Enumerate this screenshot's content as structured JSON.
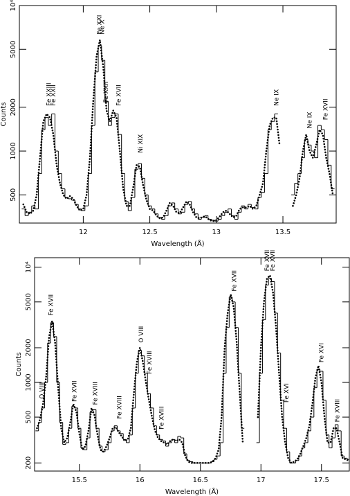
{
  "chart_data": [
    {
      "type": "line",
      "xlabel": "Wavelength (Å)",
      "ylabel": "Counts",
      "ylog": true,
      "xlim": [
        11.52,
        13.9
      ],
      "ylim": [
        320,
        10000
      ],
      "xticks": [
        12,
        12.5,
        13,
        13.5
      ],
      "yticks": [
        500,
        1000,
        2000,
        5000,
        {
          "value": 10000,
          "label": "10⁴"
        }
      ],
      "x": [
        11.55,
        11.575,
        11.6,
        11.625,
        11.65,
        11.675,
        11.7,
        11.725,
        11.75,
        11.775,
        11.8,
        11.825,
        11.85,
        11.875,
        11.9,
        11.925,
        11.95,
        11.975,
        12.0,
        12.025,
        12.05,
        12.075,
        12.1,
        12.125,
        12.15,
        12.175,
        12.2,
        12.225,
        12.25,
        12.275,
        12.3,
        12.325,
        12.35,
        12.375,
        12.4,
        12.425,
        12.45,
        12.475,
        12.5,
        12.525,
        12.55,
        12.575,
        12.6,
        12.625,
        12.65,
        12.675,
        12.7,
        12.725,
        12.75,
        12.775,
        12.8,
        12.825,
        12.85,
        12.875,
        12.9,
        12.925,
        12.95,
        12.975,
        13.0,
        13.025,
        13.05,
        13.075,
        13.1,
        13.125,
        13.15,
        13.175,
        13.2,
        13.225,
        13.25,
        13.275,
        13.3,
        13.325,
        13.35,
        13.375,
        13.4,
        13.425,
        13.45,
        13.475,
        13.5,
        13.525,
        13.55,
        13.575,
        13.6,
        13.625,
        13.65,
        13.675,
        13.7,
        13.725,
        13.75,
        13.775,
        13.8,
        13.825,
        13.85,
        13.875
      ],
      "series": [
        {
          "style": "steps",
          "color": "#000000",
          "values": [
            400,
            360,
            380,
            420,
            400,
            700,
            1400,
            1700,
            1500,
            1800,
            1000,
            700,
            550,
            480,
            470,
            460,
            430,
            400,
            390,
            420,
            700,
            1500,
            3500,
            5300,
            4200,
            2200,
            1500,
            1700,
            1800,
            1300,
            700,
            450,
            390,
            480,
            750,
            820,
            650,
            500,
            420,
            400,
            370,
            350,
            340,
            360,
            420,
            440,
            400,
            370,
            380,
            430,
            450,
            400,
            370,
            340,
            350,
            360,
            340,
            335,
            330,
            340,
            360,
            380,
            400,
            360,
            340,
            380,
            420,
            400,
            430,
            410,
            400,
            480,
            520,
            700,
            1400,
            1600,
            1800,
            null,
            null,
            null,
            null,
            500,
            600,
            700,
            900,
            1200,
            1100,
            1000,
            900,
            1500,
            1400,
            1200,
            800,
            550
          ]
        },
        {
          "style": "dotted",
          "color": "#000000",
          "values": [
            430,
            380,
            370,
            390,
            500,
            900,
            1600,
            1800,
            1700,
            1300,
            800,
            600,
            500,
            470,
            490,
            470,
            420,
            390,
            400,
            500,
            900,
            2200,
            4500,
            5800,
            3800,
            1900,
            1600,
            1900,
            1700,
            1000,
            550,
            420,
            420,
            560,
            800,
            780,
            580,
            460,
            400,
            390,
            360,
            345,
            350,
            390,
            440,
            420,
            380,
            375,
            410,
            450,
            430,
            380,
            350,
            345,
            355,
            350,
            335,
            330,
            335,
            355,
            380,
            390,
            370,
            350,
            360,
            400,
            410,
            410,
            420,
            400,
            420,
            500,
            600,
            1000,
            1500,
            1700,
            1700,
            1100,
            null,
            null,
            null,
            420,
            500,
            650,
            1000,
            1300,
            1000,
            900,
            1100,
            1400,
            1300,
            900,
            700,
            500
          ]
        }
      ],
      "annotations": [
        {
          "text": "Fe XXIII",
          "x": 11.74,
          "y": 2000
        },
        {
          "text": "Fe XXII",
          "x": 11.775,
          "y": 2000
        },
        {
          "text": "Fe XXI",
          "x": 12.12,
          "y": 6200
        },
        {
          "text": "Ne X",
          "x": 12.14,
          "y": 6200
        },
        {
          "text": "Fe XXII",
          "x": 12.17,
          "y": 2100
        },
        {
          "text": "Fe XVII",
          "x": 12.265,
          "y": 2000
        },
        {
          "text": "Ni XIX",
          "x": 12.43,
          "y": 950
        },
        {
          "text": "Ne IX",
          "x": 13.45,
          "y": 2000
        },
        {
          "text": "Ne IX",
          "x": 13.7,
          "y": 1400
        },
        {
          "text": "Fe XVII",
          "x": 13.82,
          "y": 1600
        }
      ]
    },
    {
      "type": "line",
      "xlabel": "Wavelength (Å)",
      "ylabel": "Counts",
      "ylog": true,
      "xlim": [
        15.13,
        17.73
      ],
      "ylim": [
        170,
        12100
      ],
      "xticks": [
        15.5,
        16,
        16.5,
        17,
        17.5
      ],
      "yticks": [
        200,
        500,
        1000,
        2000,
        5000,
        {
          "value": 10000,
          "label": "10⁴"
        }
      ],
      "x": [
        15.15,
        15.175,
        15.2,
        15.225,
        15.25,
        15.275,
        15.3,
        15.325,
        15.35,
        15.375,
        15.4,
        15.425,
        15.45,
        15.475,
        15.5,
        15.525,
        15.55,
        15.575,
        15.6,
        15.625,
        15.65,
        15.675,
        15.7,
        15.725,
        15.75,
        15.775,
        15.8,
        15.825,
        15.85,
        15.875,
        15.9,
        15.925,
        15.95,
        15.975,
        16.0,
        16.025,
        16.05,
        16.075,
        16.1,
        16.125,
        16.15,
        16.175,
        16.2,
        16.225,
        16.25,
        16.275,
        16.3,
        16.325,
        16.35,
        16.375,
        16.4,
        16.425,
        16.45,
        16.475,
        16.5,
        16.525,
        16.55,
        16.575,
        16.6,
        16.625,
        16.65,
        16.675,
        16.7,
        16.725,
        16.75,
        16.775,
        16.8,
        16.825,
        16.85,
        16.875,
        16.9,
        16.925,
        16.95,
        16.975,
        17.0,
        17.025,
        17.05,
        17.075,
        17.1,
        17.125,
        17.15,
        17.175,
        17.2,
        17.225,
        17.25,
        17.275,
        17.3,
        17.325,
        17.35,
        17.375,
        17.4,
        17.425,
        17.45,
        17.475,
        17.5,
        17.525,
        17.55,
        17.575,
        17.6,
        17.625,
        17.65,
        17.675,
        17.7,
        17.725
      ],
      "series": [
        {
          "style": "steps",
          "color": "#000000",
          "values": [
            380,
            450,
            600,
            1000,
            2200,
            3300,
            2500,
            1000,
            450,
            290,
            300,
            400,
            620,
            600,
            400,
            270,
            260,
            330,
            550,
            580,
            400,
            280,
            250,
            260,
            300,
            380,
            420,
            380,
            360,
            320,
            300,
            350,
            600,
            1200,
            1900,
            1700,
            1200,
            800,
            600,
            420,
            350,
            320,
            310,
            280,
            300,
            320,
            300,
            340,
            330,
            240,
            210,
            205,
            200,
            200,
            200,
            200,
            200,
            200,
            205,
            215,
            230,
            300,
            1200,
            3000,
            5500,
            5000,
            3000,
            1200,
            400,
            null,
            null,
            null,
            null,
            300,
            1200,
            3500,
            7000,
            8000,
            7500,
            4000,
            1800,
            700,
            400,
            250,
            200,
            200,
            210,
            230,
            270,
            300,
            380,
            500,
            900,
            1300,
            1250,
            700,
            350,
            270,
            330,
            430,
            380,
            230,
            220,
            215
          ]
        },
        {
          "style": "dotted",
          "color": "#000000",
          "values": [
            400,
            480,
            650,
            1100,
            2500,
            3400,
            2200,
            900,
            400,
            300,
            330,
            450,
            650,
            560,
            360,
            260,
            280,
            380,
            600,
            520,
            350,
            260,
            250,
            280,
            330,
            400,
            410,
            370,
            340,
            310,
            320,
            400,
            800,
            1500,
            2000,
            1500,
            1000,
            700,
            500,
            380,
            330,
            310,
            300,
            290,
            310,
            320,
            310,
            320,
            300,
            230,
            205,
            200,
            200,
            200,
            200,
            200,
            200,
            200,
            205,
            220,
            260,
            500,
            2000,
            4000,
            5800,
            4500,
            2200,
            800,
            300,
            null,
            null,
            null,
            null,
            500,
            2000,
            5000,
            8000,
            8500,
            6000,
            3000,
            1200,
            500,
            300,
            220,
            200,
            205,
            215,
            240,
            280,
            330,
            420,
            650,
            1100,
            1400,
            1000,
            500,
            300,
            300,
            400,
            400,
            300,
            220,
            215,
            210
          ]
        }
      ],
      "annotations": [
        {
          "text": "O VIII",
          "x": 15.19,
          "y": 700
        },
        {
          "text": "Fe XVII",
          "x": 15.265,
          "y": 3700
        },
        {
          "text": "Fe XVII",
          "x": 15.46,
          "y": 660
        },
        {
          "text": "Fe XVIII",
          "x": 15.63,
          "y": 620
        },
        {
          "text": "Fe XVIII",
          "x": 15.83,
          "y": 470
        },
        {
          "text": "O VIII",
          "x": 16.01,
          "y": 2150
        },
        {
          "text": "Fe XVIII",
          "x": 16.08,
          "y": 1150
        },
        {
          "text": "Fe XVIII",
          "x": 16.18,
          "y": 380
        },
        {
          "text": "Fe XVII",
          "x": 16.78,
          "y": 6000
        },
        {
          "text": "Fe XVII",
          "x": 17.05,
          "y": 9000
        },
        {
          "text": "Fe XVII",
          "x": 17.095,
          "y": 9000
        },
        {
          "text": "Fe XVI",
          "x": 17.21,
          "y": 650
        },
        {
          "text": "Fe XVI",
          "x": 17.5,
          "y": 1450
        },
        {
          "text": "Fe XVIII",
          "x": 17.63,
          "y": 440
        }
      ]
    }
  ]
}
